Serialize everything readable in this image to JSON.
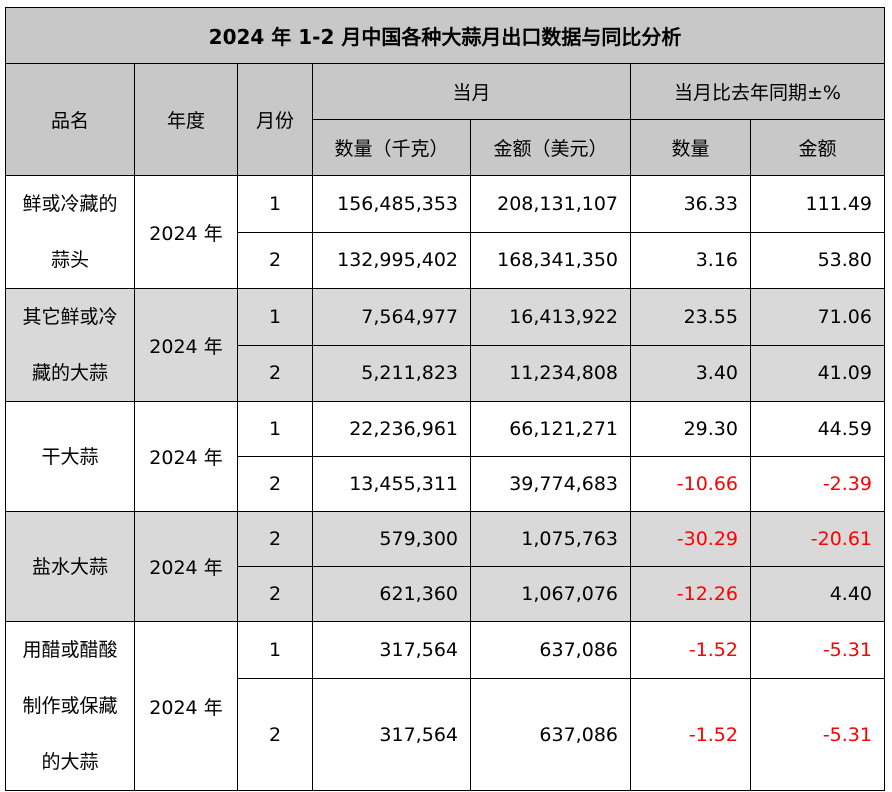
{
  "title": "2024 年 1-2 月中国各种大蒜月出口数据与同比分析",
  "headers": {
    "name": "品名",
    "year": "年度",
    "month": "月份",
    "current": "当月",
    "yoy": "当月比去年同期±%",
    "qty": "数量（千克）",
    "amt": "金额（美元）",
    "yoy_qty": "数量",
    "yoy_amt": "金额"
  },
  "colors": {
    "header_bg": "#c8c8c8",
    "alt_row_bg": "#d9d9d9",
    "negative": "#ff0000"
  },
  "groups": [
    {
      "name_lines": [
        "鲜或冷藏的",
        "蒜头"
      ],
      "year": "2024 年",
      "gray": false,
      "rows": [
        {
          "month": "1",
          "qty": "156,485,353",
          "amt": "208,131,107",
          "yoy_qty": "36.33",
          "yoy_amt": "111.49"
        },
        {
          "month": "2",
          "qty": "132,995,402",
          "amt": "168,341,350",
          "yoy_qty": "3.16",
          "yoy_amt": "53.80"
        }
      ]
    },
    {
      "name_lines": [
        "其它鲜或冷",
        "藏的大蒜"
      ],
      "year": "2024 年",
      "gray": true,
      "rows": [
        {
          "month": "1",
          "qty": "7,564,977",
          "amt": "16,413,922",
          "yoy_qty": "23.55",
          "yoy_amt": "71.06"
        },
        {
          "month": "2",
          "qty": "5,211,823",
          "amt": "11,234,808",
          "yoy_qty": "3.40",
          "yoy_amt": "41.09"
        }
      ]
    },
    {
      "name_lines": [
        "干大蒜"
      ],
      "year": "2024 年",
      "gray": false,
      "rows": [
        {
          "month": "1",
          "qty": "22,236,961",
          "amt": "66,121,271",
          "yoy_qty": "29.30",
          "yoy_amt": "44.59"
        },
        {
          "month": "2",
          "qty": "13,455,311",
          "amt": "39,774,683",
          "yoy_qty": "-10.66",
          "yoy_amt": "-2.39"
        }
      ]
    },
    {
      "name_lines": [
        "盐水大蒜"
      ],
      "year": "2024 年",
      "gray": true,
      "rows": [
        {
          "month": "2",
          "qty": "579,300",
          "amt": "1,075,763",
          "yoy_qty": "-30.29",
          "yoy_amt": "-20.61"
        },
        {
          "month": "2",
          "qty": "621,360",
          "amt": "1,067,076",
          "yoy_qty": "-12.26",
          "yoy_amt": "4.40"
        }
      ]
    },
    {
      "name_lines": [
        "用醋或醋酸",
        "制作或保藏",
        "的大蒜"
      ],
      "year": "2024 年",
      "gray": false,
      "rows": [
        {
          "month": "1",
          "qty": "317,564",
          "amt": "637,086",
          "yoy_qty": "-1.52",
          "yoy_amt": "-5.31"
        },
        {
          "month": "2",
          "qty": "317,564",
          "amt": "637,086",
          "yoy_qty": "-1.52",
          "yoy_amt": "-5.31"
        }
      ]
    }
  ]
}
